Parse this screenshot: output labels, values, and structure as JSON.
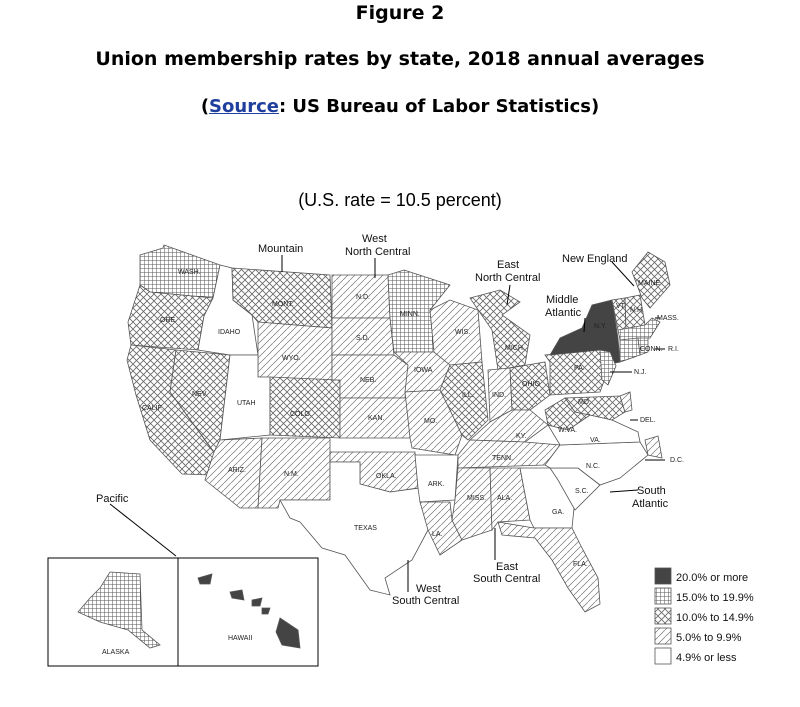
{
  "header": {
    "figure": "Figure 2",
    "title": "Union membership rates by state, 2018 annual averages",
    "source_prefix": "(",
    "source_link": "Source",
    "source_suffix": ": US Bureau of Labor Statistics)"
  },
  "map": {
    "rate_note": "(U.S. rate = 10.5 percent)",
    "colors": {
      "dark": "#444444",
      "hatch": "#555555",
      "outline": "#555555"
    },
    "legend": [
      {
        "id": "c1",
        "label": "20.0% or more",
        "pattern": "solid"
      },
      {
        "id": "c2",
        "label": "15.0% to 19.9%",
        "pattern": "grid"
      },
      {
        "id": "c3",
        "label": "10.0% to 14.9%",
        "pattern": "crosshatch"
      },
      {
        "id": "c4",
        "label": "5.0% to 9.9%",
        "pattern": "diagonal"
      },
      {
        "id": "c5",
        "label": "4.9% or less",
        "pattern": "blank"
      }
    ],
    "regions": [
      {
        "id": "pacific",
        "label": "Pacific"
      },
      {
        "id": "mountain",
        "label": "Mountain"
      },
      {
        "id": "wnc",
        "label": "West North Central"
      },
      {
        "id": "enc",
        "label": "East North Central"
      },
      {
        "id": "ne",
        "label": "New England"
      },
      {
        "id": "ma",
        "label": "Middle Atlantic"
      },
      {
        "id": "sa",
        "label": "South Atlantic"
      },
      {
        "id": "esc",
        "label": "East South Central"
      },
      {
        "id": "wsc",
        "label": "West South Central"
      }
    ],
    "states": [
      {
        "id": "wa",
        "label": "WASH.",
        "cls": "c2"
      },
      {
        "id": "or",
        "label": "ORE.",
        "cls": "c3"
      },
      {
        "id": "ca",
        "label": "CALIF.",
        "cls": "c3"
      },
      {
        "id": "nv",
        "label": "NEV.",
        "cls": "c3"
      },
      {
        "id": "id",
        "label": "IDAHO",
        "cls": "c5"
      },
      {
        "id": "mt",
        "label": "MONT.",
        "cls": "c3"
      },
      {
        "id": "wy",
        "label": "WYO.",
        "cls": "c4"
      },
      {
        "id": "ut",
        "label": "UTAH",
        "cls": "c5"
      },
      {
        "id": "co",
        "label": "COLO.",
        "cls": "c3"
      },
      {
        "id": "az",
        "label": "ARIZ.",
        "cls": "c4"
      },
      {
        "id": "nm",
        "label": "N.M.",
        "cls": "c4"
      },
      {
        "id": "nd",
        "label": "N.D.",
        "cls": "c4"
      },
      {
        "id": "sd",
        "label": "S.D.",
        "cls": "c4"
      },
      {
        "id": "ne",
        "label": "NEB.",
        "cls": "c4"
      },
      {
        "id": "ks",
        "label": "KAN.",
        "cls": "c4"
      },
      {
        "id": "mn",
        "label": "MINN.",
        "cls": "c2"
      },
      {
        "id": "ia",
        "label": "IOWA",
        "cls": "c4"
      },
      {
        "id": "mo",
        "label": "MO.",
        "cls": "c4"
      },
      {
        "id": "ok",
        "label": "OKLA.",
        "cls": "c4"
      },
      {
        "id": "tx",
        "label": "TEXAS",
        "cls": "c5"
      },
      {
        "id": "ar",
        "label": "ARK.",
        "cls": "c5"
      },
      {
        "id": "la",
        "label": "LA.",
        "cls": "c4"
      },
      {
        "id": "wi",
        "label": "WIS.",
        "cls": "c4"
      },
      {
        "id": "il",
        "label": "ILL.",
        "cls": "c3"
      },
      {
        "id": "mi",
        "label": "MICH.",
        "cls": "c3"
      },
      {
        "id": "in",
        "label": "IND.",
        "cls": "c4"
      },
      {
        "id": "oh",
        "label": "OHIO",
        "cls": "c3"
      },
      {
        "id": "ky",
        "label": "KY.",
        "cls": "c4"
      },
      {
        "id": "tn",
        "label": "TENN.",
        "cls": "c4"
      },
      {
        "id": "ms",
        "label": "MISS.",
        "cls": "c4"
      },
      {
        "id": "al",
        "label": "ALA.",
        "cls": "c4"
      },
      {
        "id": "ga",
        "label": "GA.",
        "cls": "c5"
      },
      {
        "id": "fl",
        "label": "FLA.",
        "cls": "c4"
      },
      {
        "id": "sc",
        "label": "S.C.",
        "cls": "c5"
      },
      {
        "id": "nc",
        "label": "N.C.",
        "cls": "c5"
      },
      {
        "id": "va",
        "label": "VA.",
        "cls": "c5"
      },
      {
        "id": "wv",
        "label": "W.VA.",
        "cls": "c3"
      },
      {
        "id": "pa",
        "label": "PA.",
        "cls": "c3"
      },
      {
        "id": "ny",
        "label": "N.Y.",
        "cls": "c1"
      },
      {
        "id": "nj",
        "label": "N.J.",
        "cls": "c2"
      },
      {
        "id": "md",
        "label": "MD.",
        "cls": "c3"
      },
      {
        "id": "de",
        "label": "DEL.",
        "cls": "c4"
      },
      {
        "id": "dc",
        "label": "D.C.",
        "cls": "c4"
      },
      {
        "id": "vt",
        "label": "VT.",
        "cls": "c3"
      },
      {
        "id": "nh",
        "label": "N.H.",
        "cls": "c3"
      },
      {
        "id": "me",
        "label": "MAINE",
        "cls": "c3"
      },
      {
        "id": "mass",
        "label": "MASS.",
        "cls": "c2"
      },
      {
        "id": "ct",
        "label": "CONN.",
        "cls": "c2"
      },
      {
        "id": "ri",
        "label": "R.I.",
        "cls": "c2"
      },
      {
        "id": "ak",
        "label": "ALASKA",
        "cls": "c2"
      },
      {
        "id": "hi",
        "label": "HAWAII",
        "cls": "c1"
      }
    ]
  }
}
